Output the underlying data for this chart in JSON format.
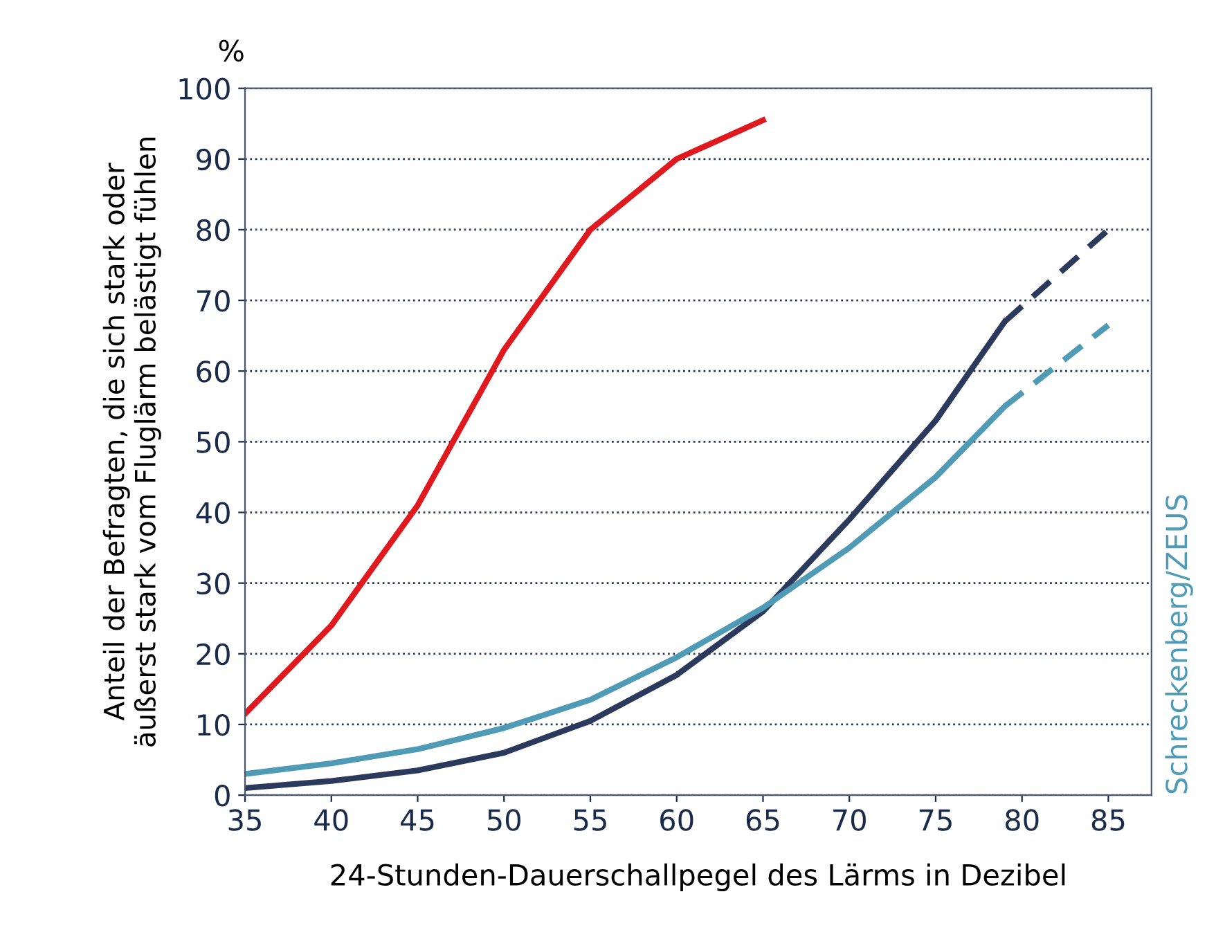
{
  "chart_data": {
    "type": "line",
    "xlabel": "24-Stunden-Dauerschallpegel des Lärms in Dezibel",
    "ylabel": "Anteil der Befragten, die sich stark oder\näußerst stark vom Fluglärm belästigt fühlen",
    "annotations": [
      "%",
      "Schreckenberg/ZEUS"
    ],
    "xlim": [
      35,
      87.5
    ],
    "ylim": [
      0,
      100
    ],
    "xticks": [
      35,
      40,
      45,
      50,
      55,
      60,
      65,
      70,
      75,
      80,
      85
    ],
    "yticks": [
      0,
      10,
      20,
      30,
      40,
      50,
      60,
      70,
      80,
      90,
      100
    ],
    "grid": "y",
    "line_style": "solid",
    "marker": "none",
    "series": [
      {
        "color": "#e0191f",
        "x": [
          35,
          40,
          45,
          50,
          55,
          60,
          65
        ],
        "values": [
          11.5,
          24,
          41,
          63,
          80,
          90,
          95.5
        ]
      },
      {
        "color": "#2b3a5c",
        "x": [
          35,
          40,
          45,
          50,
          55,
          60,
          65,
          70,
          75,
          79
        ],
        "values": [
          1,
          2,
          3.5,
          6,
          10.5,
          17,
          26,
          39,
          53,
          67
        ]
      },
      {
        "color": "#2b3a5c",
        "x": [
          79,
          85
        ],
        "values": [
          67,
          80
        ],
        "line_style": "dashed"
      },
      {
        "color": "#4f9ab5",
        "x": [
          35,
          40,
          45,
          50,
          55,
          60,
          65,
          70,
          75,
          79
        ],
        "values": [
          3,
          4.5,
          6.5,
          9.5,
          13.5,
          19.5,
          26.5,
          35,
          45,
          55
        ]
      },
      {
        "color": "#4f9ab5",
        "x": [
          79,
          85
        ],
        "values": [
          55,
          66.5
        ],
        "line_style": "dashed"
      }
    ]
  }
}
